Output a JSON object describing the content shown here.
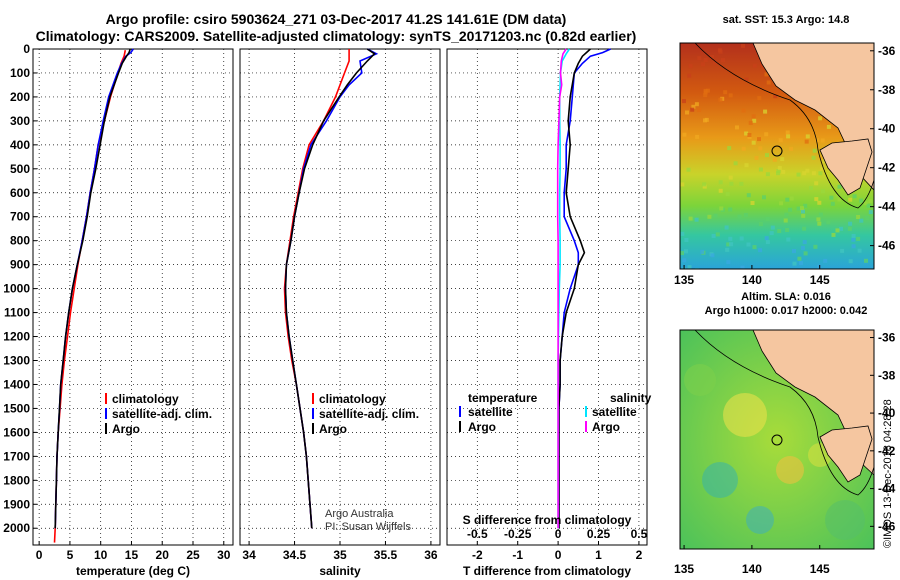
{
  "header": {
    "title_line1": "Argo profile: csiro 5903624_271 03-Dec-2017 41.2S 141.61E (DM data)",
    "title_line2": "Climatology: CARS2009. Satellite-adjusted climatology: synTS_20171203.nc (0.82d earlier)"
  },
  "colors": {
    "climatology": "#ff0000",
    "satellite": "#0000ff",
    "argo": "#000000",
    "satellite_salinity": "#00e5ff",
    "argo_salinity": "#ff00ff",
    "land": "#f5c6a0"
  },
  "maps": {
    "sst_title": "sat. SST: 15.3 Argo: 14.8",
    "sla_title_line1": "Altim. SLA: 0.016",
    "sla_title_line2": "Argo h1000: 0.017 h2000: 0.042",
    "lon_ticks": [
      "135",
      "140",
      "145"
    ],
    "lat_ticks": [
      "-36",
      "-38",
      "-40",
      "-42",
      "-44",
      "-46"
    ]
  },
  "credits": {
    "line1": "Argo Australia",
    "line2": "PI: Susan Wijffels"
  },
  "stamp": "©IMOS 13-Dec-2018 04:28:28",
  "chart_data": [
    {
      "type": "line",
      "xlabel": "temperature (deg C)",
      "ylabel": "",
      "xlim": [
        -1,
        31.5
      ],
      "ylim": [
        2070,
        0
      ],
      "x_ticks": [
        "0",
        "5",
        "10",
        "15",
        "20",
        "25",
        "30"
      ],
      "y_ticks": [
        "0",
        "100",
        "200",
        "300",
        "400",
        "500",
        "600",
        "700",
        "800",
        "900",
        "1000",
        "1100",
        "1200",
        "1300",
        "1400",
        "1500",
        "1600",
        "1700",
        "1800",
        "1900",
        "2000"
      ],
      "grid": true,
      "legend": [
        "climatology",
        "satellite-adj. clim.",
        "Argo"
      ],
      "series": [
        {
          "name": "climatology",
          "color": "#ff0000",
          "depth": [
            5,
            30,
            60,
            100,
            200,
            300,
            400,
            500,
            600,
            700,
            800,
            900,
            1000,
            1100,
            1200,
            1300,
            1400,
            1500,
            1600,
            1700,
            1800,
            1900,
            2000,
            2060
          ],
          "values": [
            14.0,
            13.8,
            13.3,
            12.8,
            11.6,
            10.6,
            9.6,
            9.0,
            8.3,
            7.7,
            7.0,
            6.3,
            5.7,
            5.1,
            4.6,
            4.1,
            3.7,
            3.4,
            3.1,
            2.9,
            2.8,
            2.7,
            2.6,
            2.5
          ]
        },
        {
          "name": "satellite-adj. clim.",
          "color": "#0000ff",
          "depth": [
            0,
            15,
            30,
            60,
            100,
            200,
            300,
            400,
            500,
            600,
            700,
            800,
            900,
            1000,
            1100,
            1200,
            1300,
            1400,
            1500,
            1600,
            1700,
            1800,
            1900,
            2000
          ],
          "values": [
            15.3,
            14.9,
            14.1,
            13.4,
            12.7,
            11.3,
            10.4,
            9.6,
            9.0,
            8.3,
            7.7,
            7.0,
            6.2,
            5.4,
            4.8,
            4.3,
            3.9,
            3.5,
            3.3,
            3.1,
            2.9,
            2.8,
            2.7,
            2.6
          ]
        },
        {
          "name": "Argo",
          "color": "#000000",
          "depth": [
            0,
            15,
            30,
            60,
            100,
            200,
            300,
            400,
            500,
            600,
            700,
            800,
            900,
            1000,
            1100,
            1200,
            1300,
            1400,
            1500,
            1600,
            1700,
            1800,
            1900,
            2000
          ],
          "values": [
            14.8,
            14.6,
            14.2,
            13.5,
            12.9,
            11.5,
            10.6,
            9.9,
            9.2,
            8.4,
            7.8,
            7.1,
            6.2,
            5.4,
            4.8,
            4.3,
            3.9,
            3.5,
            3.3,
            3.1,
            2.9,
            2.8,
            2.7,
            2.6
          ]
        }
      ]
    },
    {
      "type": "line",
      "xlabel": "salinity",
      "ylabel": "",
      "xlim": [
        33.9,
        36.1
      ],
      "ylim": [
        2070,
        0
      ],
      "x_ticks": [
        "34",
        "34.5",
        "35",
        "35.5",
        "36"
      ],
      "grid": true,
      "legend": [
        "climatology",
        "satellite-adj. clim.",
        "Argo"
      ],
      "series": [
        {
          "name": "climatology",
          "color": "#ff0000",
          "depth": [
            0,
            50,
            100,
            200,
            300,
            400,
            500,
            600,
            700,
            800,
            900,
            1000,
            1100,
            1200,
            1300,
            1400,
            1500,
            1600,
            1700,
            1800,
            1900,
            2000
          ],
          "values": [
            35.1,
            35.1,
            35.05,
            34.95,
            34.82,
            34.66,
            34.59,
            34.54,
            34.49,
            34.45,
            34.41,
            34.39,
            34.4,
            34.43,
            34.47,
            34.52,
            34.56,
            34.6,
            34.63,
            34.65,
            34.67,
            34.69
          ]
        },
        {
          "name": "satellite-adj. clim.",
          "color": "#0000ff",
          "depth": [
            0,
            20,
            50,
            100,
            150,
            200,
            300,
            400,
            500,
            600,
            700,
            800,
            900,
            1000,
            1100,
            1200,
            1300,
            1400,
            1500,
            1600,
            1700,
            1800,
            1900,
            2000
          ],
          "values": [
            35.3,
            35.4,
            35.22,
            35.24,
            35.1,
            35.0,
            34.85,
            34.68,
            34.6,
            34.55,
            34.5,
            34.46,
            34.41,
            34.4,
            34.41,
            34.44,
            34.48,
            34.52,
            34.56,
            34.6,
            34.63,
            34.65,
            34.67,
            34.69
          ]
        },
        {
          "name": "Argo",
          "color": "#000000",
          "depth": [
            0,
            20,
            50,
            100,
            150,
            200,
            300,
            400,
            500,
            600,
            700,
            800,
            900,
            1000,
            1100,
            1200,
            1300,
            1400,
            1500,
            1600,
            1700,
            1800,
            1900,
            2000
          ],
          "values": [
            35.3,
            35.38,
            35.3,
            35.18,
            35.08,
            34.99,
            34.82,
            34.7,
            34.61,
            34.55,
            34.5,
            34.46,
            34.41,
            34.4,
            34.41,
            34.44,
            34.48,
            34.52,
            34.56,
            34.6,
            34.63,
            34.65,
            34.67,
            34.69
          ]
        }
      ]
    },
    {
      "type": "line",
      "xlabel": "T difference from climatology",
      "x2label": "S difference from climatology",
      "ylabel": "",
      "xlim": [
        -2.75,
        2.2
      ],
      "ylim": [
        2070,
        0
      ],
      "x_ticks": [
        "-2",
        "-1",
        "0",
        "1",
        "2"
      ],
      "x2_ticks": [
        "-0.5",
        "-0.25",
        "0",
        "0.25",
        "0.5"
      ],
      "grid": true,
      "legend_temperature_title": "temperature",
      "legend_salinity_title": "salinity",
      "legend_temperature": [
        "satellite",
        "Argo"
      ],
      "legend_salinity": [
        "satellite",
        "Argo"
      ],
      "series": [
        {
          "name": "satellite",
          "color": "#0000ff",
          "depth": [
            0,
            15,
            30,
            60,
            100,
            200,
            300,
            400,
            500,
            600,
            700,
            800,
            850,
            900,
            1000,
            1100,
            1200,
            1300,
            1400,
            1500,
            1600,
            1700,
            1800,
            1900,
            2000
          ],
          "values": [
            1.3,
            1.1,
            0.8,
            0.6,
            0.4,
            0.35,
            0.3,
            0.2,
            0.2,
            0.15,
            0.15,
            0.4,
            0.5,
            0.5,
            0.3,
            0.15,
            0.1,
            0.05,
            0.05,
            0.02,
            0.02,
            0.02,
            0.02,
            0.02,
            0.02
          ]
        },
        {
          "name": "Argo",
          "color": "#000000",
          "depth": [
            0,
            15,
            30,
            60,
            100,
            200,
            300,
            400,
            500,
            600,
            700,
            800,
            850,
            900,
            1000,
            1100,
            1200,
            1300,
            1400,
            1500,
            1600,
            1700,
            1800,
            1900,
            2000
          ],
          "values": [
            0.8,
            0.7,
            0.6,
            0.5,
            0.4,
            0.3,
            0.25,
            0.3,
            0.25,
            0.2,
            0.3,
            0.55,
            0.65,
            0.5,
            0.4,
            0.2,
            0.1,
            0.05,
            0.05,
            0.02,
            0.02,
            0.02,
            0.02,
            0.02,
            0.02
          ]
        },
        {
          "name": "satellite (salinity)",
          "color": "#00e5ff",
          "depth": [
            0,
            20,
            50,
            100,
            200,
            300,
            400,
            500,
            600,
            700,
            800,
            900,
            1000,
            1100,
            1200,
            1300,
            1400,
            1500,
            1600,
            1700,
            1800,
            1900,
            2000
          ],
          "values": [
            0.28,
            0.2,
            0.1,
            0.06,
            0.04,
            0.04,
            0.05,
            0.05,
            0.04,
            0.04,
            0.05,
            0.05,
            0.03,
            0.02,
            0.01,
            0.0,
            0.0,
            0.0,
            0.0,
            0.0,
            0.0,
            0.0,
            0.0
          ]
        },
        {
          "name": "Argo (salinity)",
          "color": "#ff00ff",
          "depth": [
            0,
            20,
            50,
            100,
            150,
            200,
            300,
            400,
            500,
            600,
            700,
            800,
            900,
            1000,
            1100,
            1200,
            1300,
            1400,
            1500,
            1600,
            1700,
            1800,
            1900,
            2000
          ],
          "values": [
            0.2,
            0.12,
            0.08,
            0.06,
            0.09,
            0.04,
            0.02,
            0.0,
            -0.01,
            -0.01,
            -0.01,
            0.0,
            0.0,
            0.0,
            0.0,
            0.0,
            0.0,
            0.0,
            0.0,
            0.0,
            0.0,
            0.0,
            0.0,
            0.0
          ]
        }
      ]
    }
  ]
}
